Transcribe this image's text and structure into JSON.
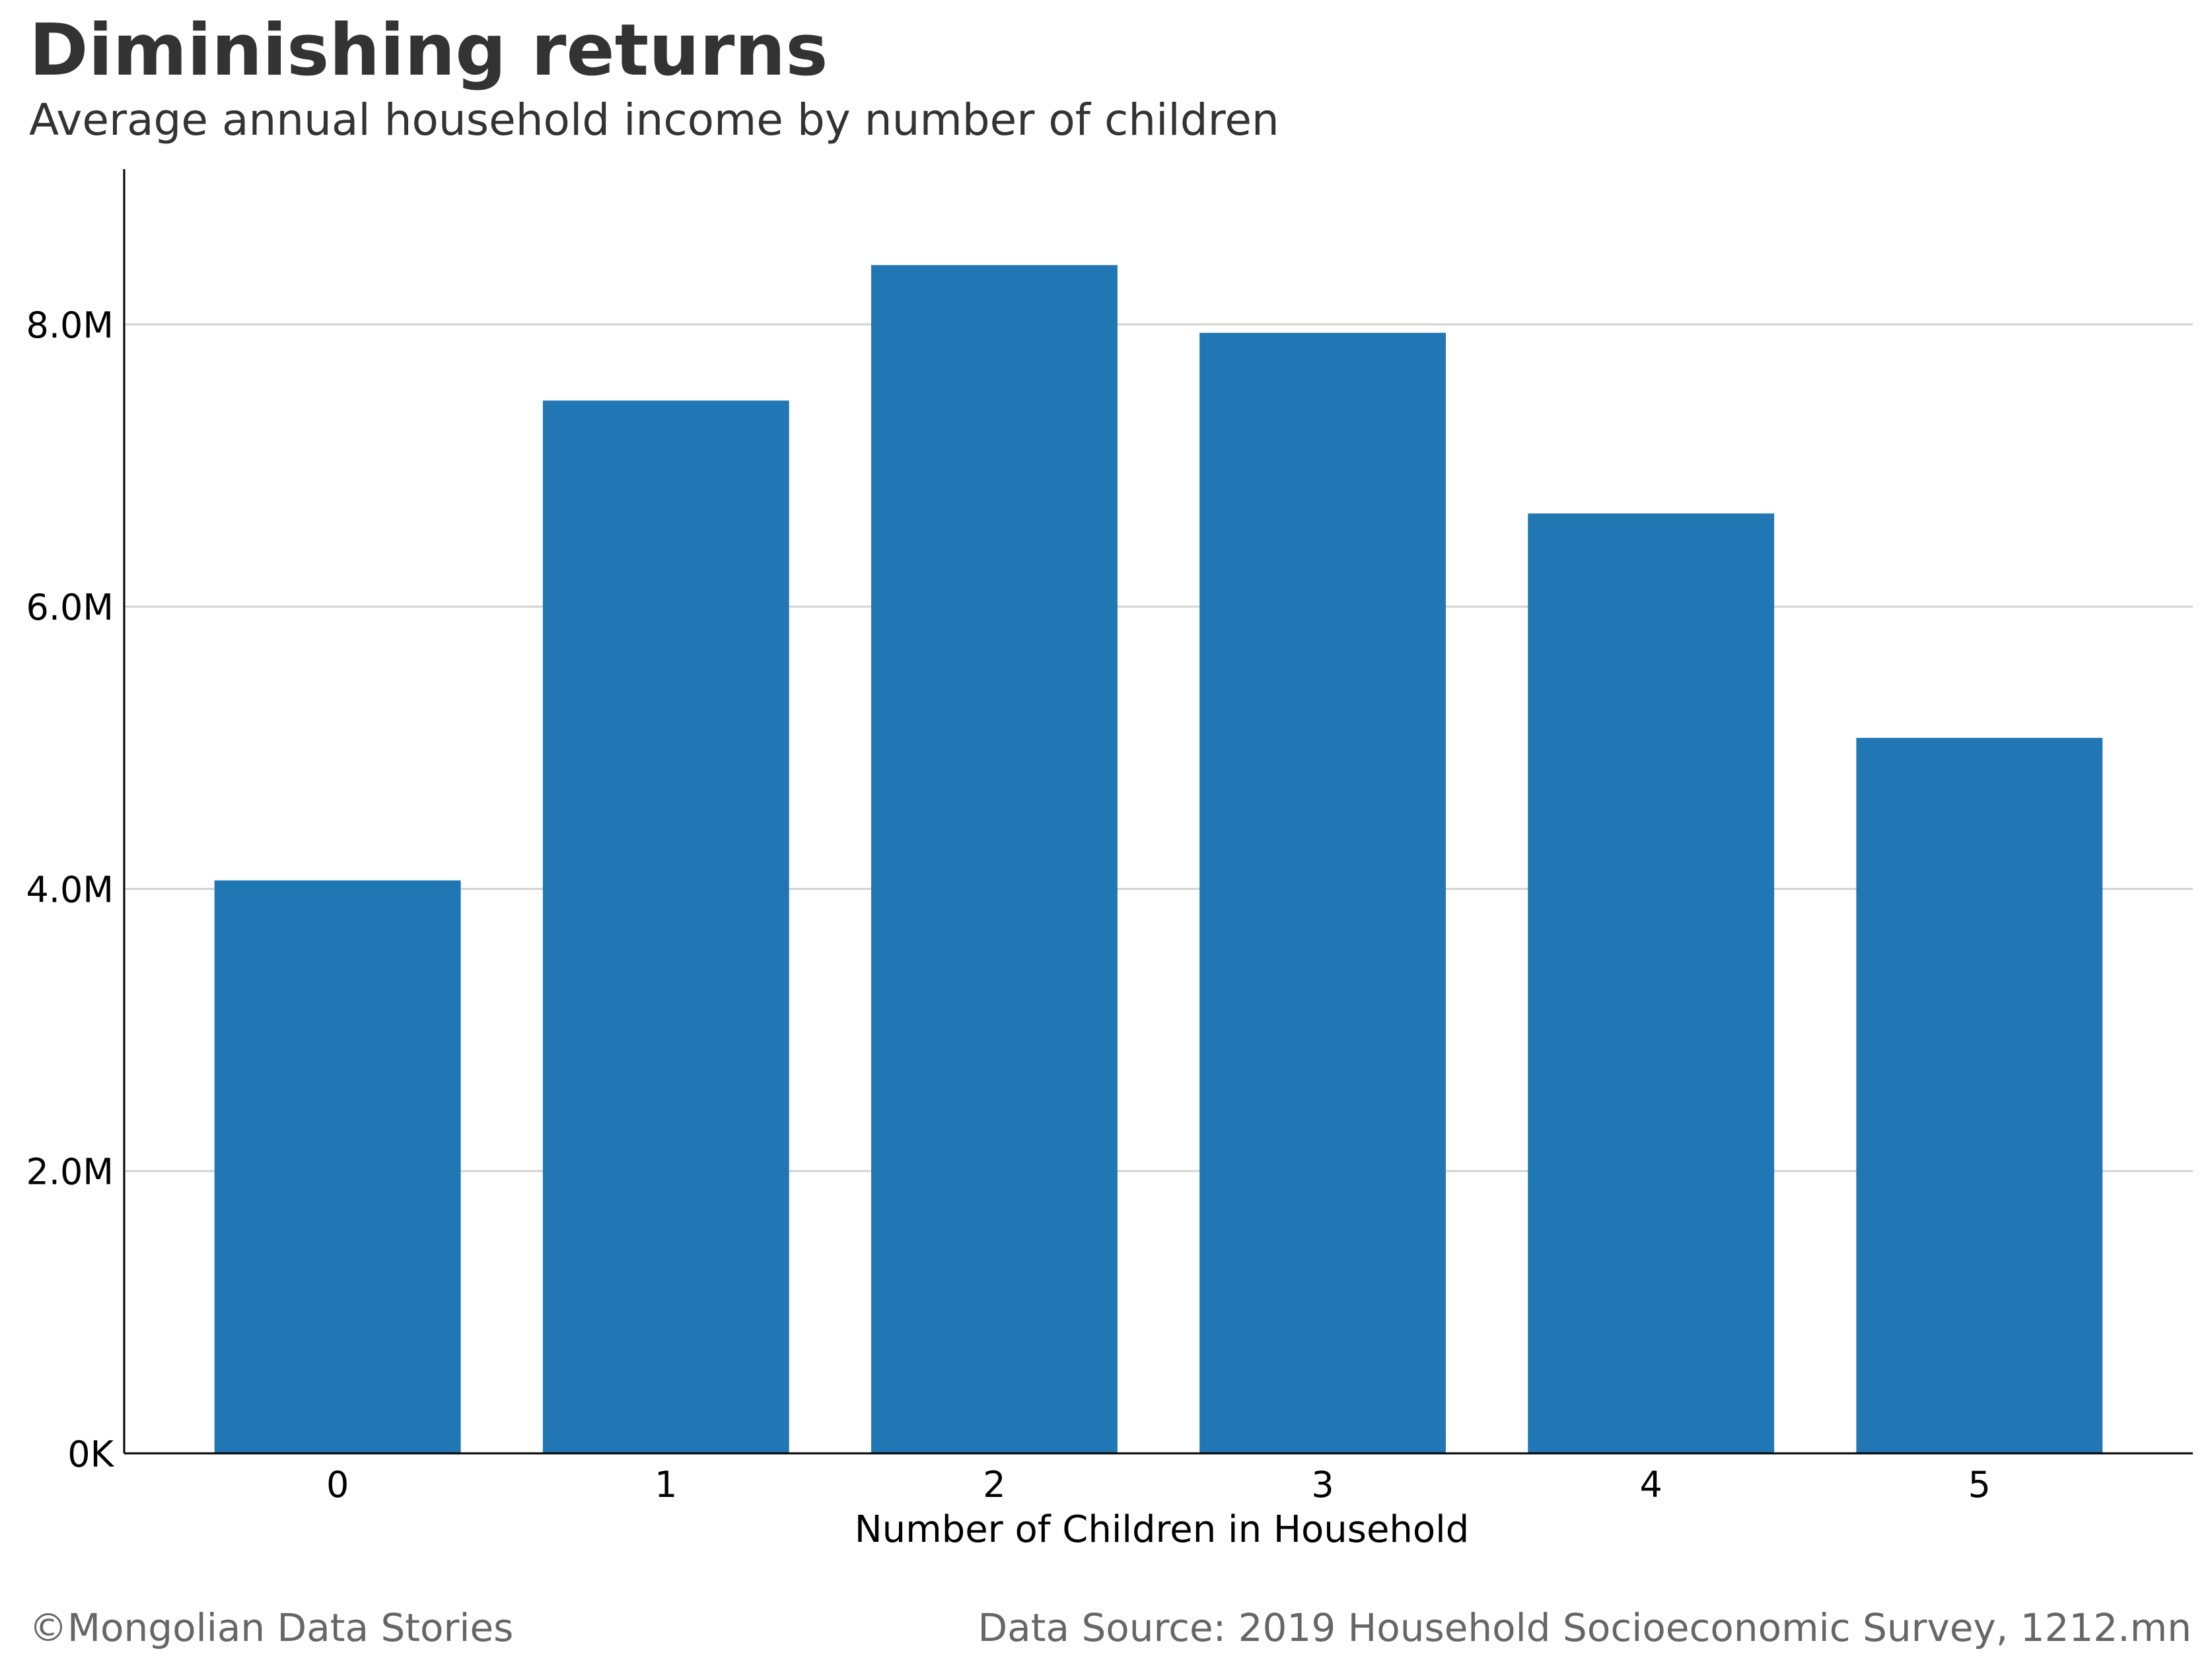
{
  "chart_data": {
    "type": "bar",
    "title": "Diminishing returns",
    "subtitle": "Average annual household income by number of children",
    "xlabel": "Number of Children in Household",
    "ylabel": "",
    "categories": [
      "0",
      "1",
      "2",
      "3",
      "4",
      "5"
    ],
    "values": [
      4060000,
      7460000,
      8420000,
      7940000,
      6660000,
      5070000
    ],
    "ylim": [
      0,
      9100000
    ],
    "yticks": [
      0,
      2000000,
      4000000,
      6000000,
      8000000
    ],
    "ytick_labels": [
      "0K",
      "2.0M",
      "4.0M",
      "6.0M",
      "8.0M"
    ],
    "grid": true,
    "bar_color": "#2177b3",
    "grid_color": "#d3d3d3",
    "axis_color": "#000000"
  },
  "footer": {
    "credit": "©Mongolian Data Stories",
    "source": "Data Source: 2019 Household Socioeconomic Survey, 1212.mn"
  }
}
